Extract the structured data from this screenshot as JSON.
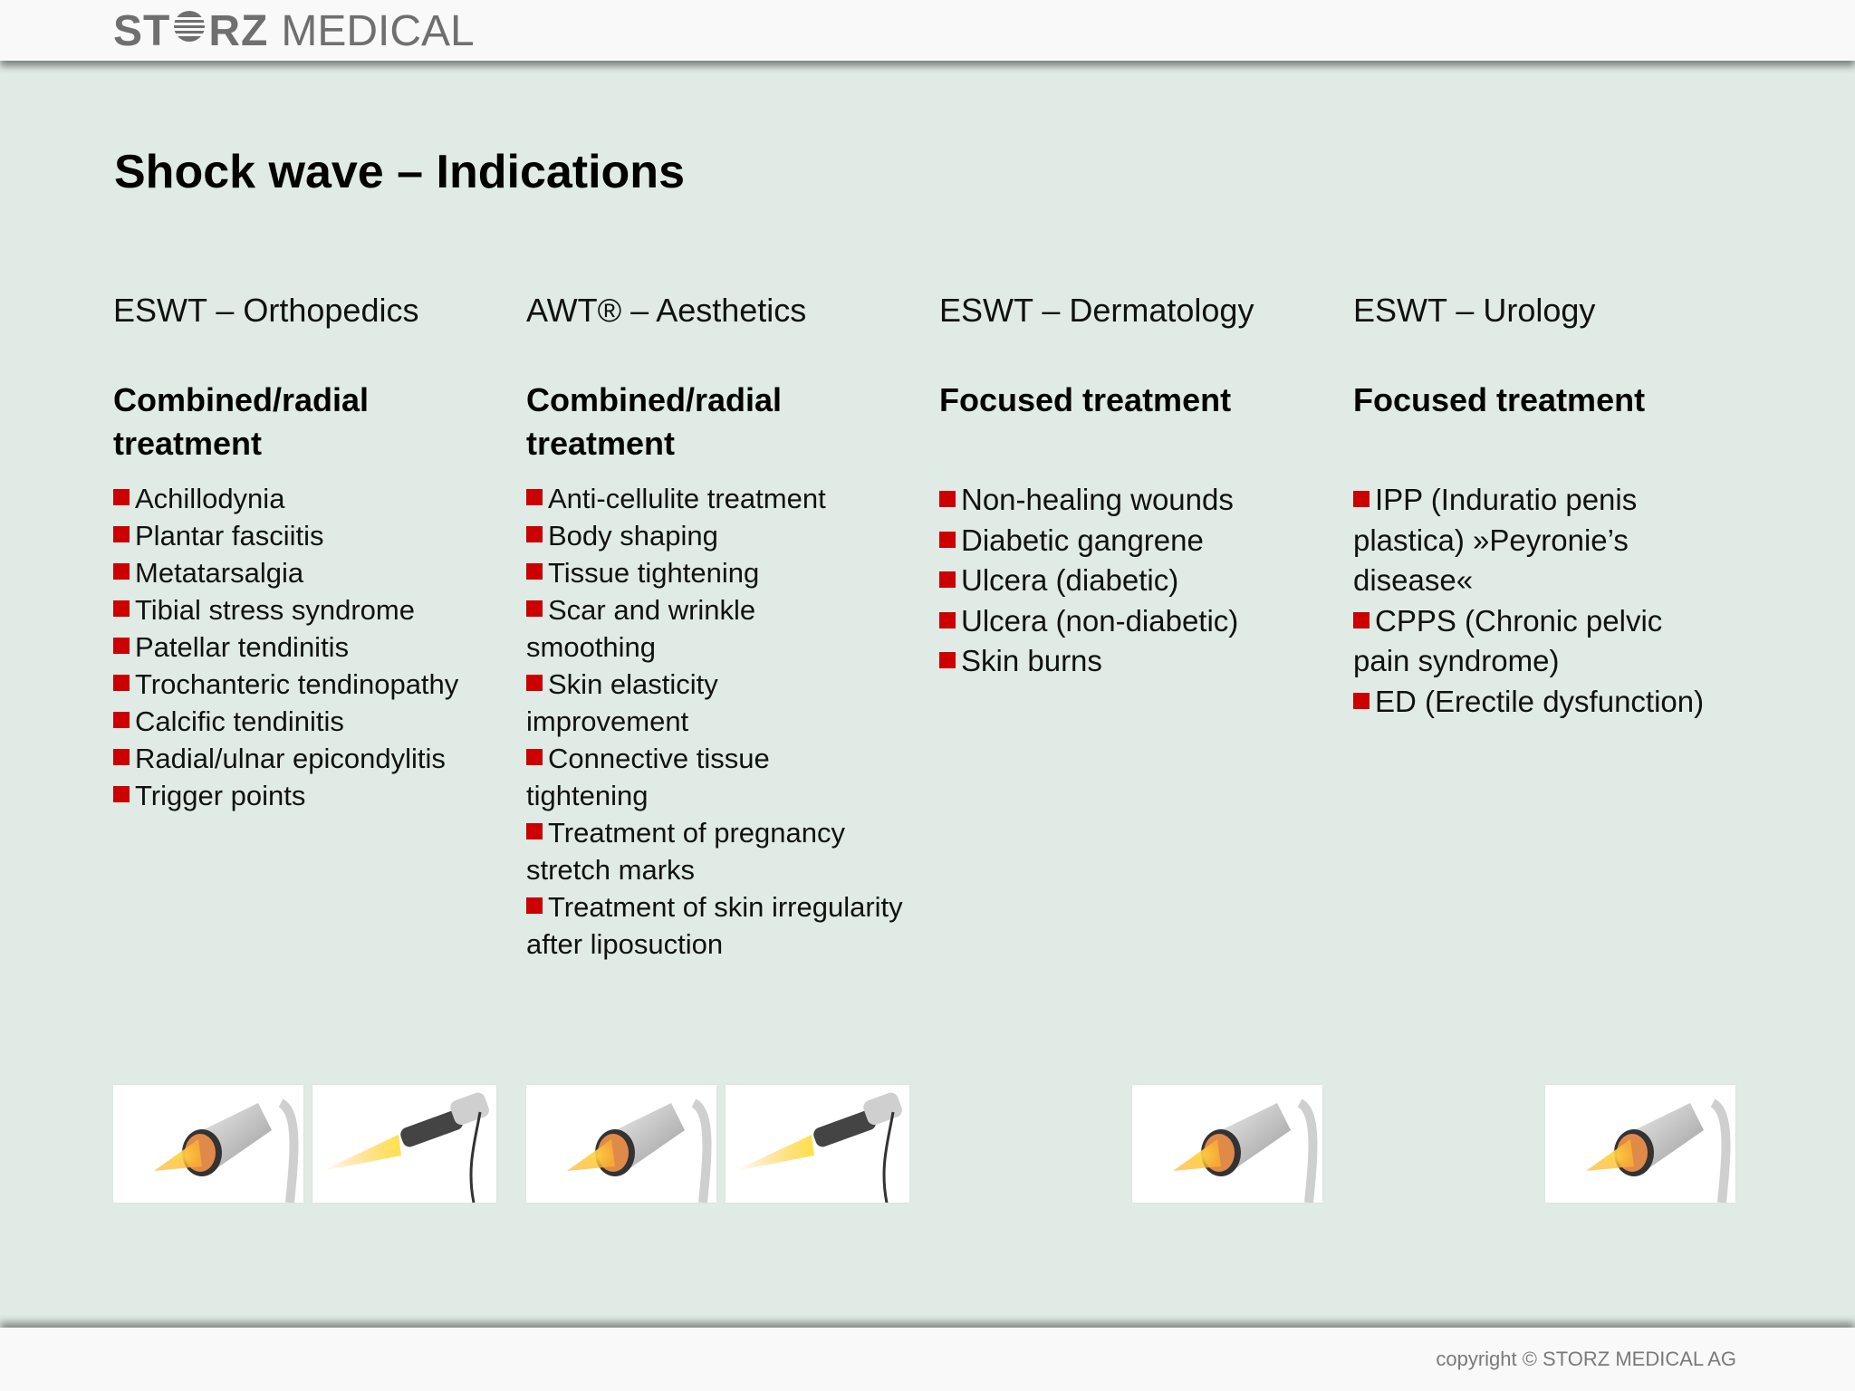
{
  "header": {
    "logo_part1": "ST",
    "logo_part2": "RZ",
    "logo_part3": "MEDICAL"
  },
  "title": "Shock wave – Indications",
  "columns": [
    {
      "heading": "ESWT – Orthopedics",
      "subheading": "Combined/radial treatment",
      "items": [
        "Achillodynia",
        "Plantar fasciitis",
        "Metatarsalgia",
        "Tibial stress syndrome",
        "Patellar tendinitis",
        "Trochanteric tendinopathy",
        "Calcific tendinitis",
        "Radial/ulnar epicondylitis",
        "Trigger points"
      ]
    },
    {
      "heading": "AWT® – Aesthetics",
      "subheading": "Combined/radial treatment",
      "items": [
        "Anti-cellulite treatment",
        "Body shaping",
        "Tissue tightening",
        "Scar and wrinkle smoothing",
        "Skin elasticity improvement",
        "Connective tissue tightening",
        "Treatment of pregnancy stretch marks",
        "Treatment of skin irregularity after liposuction"
      ]
    },
    {
      "heading": "ESWT – Dermatology",
      "subheading": "Focused treatment",
      "items": [
        "Non-healing wounds",
        "Diabetic gangrene",
        "Ulcera (diabetic)",
        "Ulcera (non-diabetic)",
        "Skin burns"
      ]
    },
    {
      "heading": "ESWT – Urology",
      "subheading": "Focused treatment",
      "items": [
        "IPP (Induratio penis plastica) »Peyronie’s disease«",
        "CPPS (Chronic pelvic pain syndrome)",
        "ED (Erectile dysfunction)"
      ]
    }
  ],
  "footer": {
    "copyright": "copyright © STORZ MEDICAL AG"
  },
  "colors": {
    "bullet": "#cc0000",
    "background": "#e0ebe6",
    "logo": "#6f6f6f"
  },
  "icons": [
    "focused-applicator-image",
    "radial-applicator-image"
  ]
}
